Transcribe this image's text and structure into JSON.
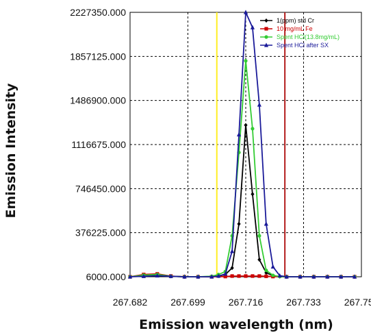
{
  "chart_data": {
    "type": "line",
    "xlabel": "Emission wavelength (nm)",
    "ylabel": "Emission Intensity",
    "xlim": [
      267.682,
      267.75
    ],
    "ylim": [
      6000,
      2227350
    ],
    "x_tick_labels": [
      "267.682",
      "267.699",
      "267.716",
      "267.733",
      "267.750"
    ],
    "y_tick_labels": [
      "6000.000",
      "376225.000",
      "746450.000",
      "1116675.000",
      "1486900.000",
      "1857125.000",
      "2227350.000"
    ],
    "grid": true,
    "legend_position": "top-right",
    "colors": {
      "cr_standard": "#000000",
      "fe_standard": "#cc0000",
      "spent_hcl": "#33cc33",
      "spent_hcl_sx": "#1a1a99",
      "yellow_marker": "#ffee22",
      "red_marker": "#b21a1a"
    },
    "vertical_markers": [
      {
        "x": 267.7075,
        "color": "#ffee22"
      },
      {
        "x": 267.7275,
        "color": "#b21a1a"
      }
    ],
    "series": [
      {
        "name": "1(ppm) std  Cr",
        "color": "#000000",
        "marker": "diamond",
        "x": [
          267.682,
          267.686,
          267.69,
          267.694,
          267.698,
          267.702,
          267.706,
          267.708,
          267.71,
          267.712,
          267.714,
          267.716,
          267.718,
          267.72,
          267.722,
          267.724,
          267.726,
          267.728,
          267.732,
          267.736,
          267.74,
          267.744,
          267.748
        ],
        "values": [
          6000,
          15000,
          20000,
          10000,
          6000,
          6000,
          8000,
          12000,
          25000,
          80000,
          450000,
          1280000,
          700000,
          150000,
          40000,
          15000,
          8000,
          6000,
          6000,
          6000,
          6000,
          6000,
          6000
        ]
      },
      {
        "name": "10 mg/mL  Fe",
        "color": "#cc0000",
        "marker": "square",
        "x": [
          267.682,
          267.686,
          267.69,
          267.694,
          267.698,
          267.702,
          267.706,
          267.71,
          267.712,
          267.714,
          267.716,
          267.718,
          267.72,
          267.722,
          267.724,
          267.728,
          267.732,
          267.736,
          267.74,
          267.744,
          267.748
        ],
        "values": [
          6000,
          25000,
          30000,
          12000,
          6000,
          6000,
          6000,
          8000,
          12000,
          12000,
          12000,
          12000,
          12000,
          10000,
          8000,
          6000,
          6000,
          6000,
          6000,
          6000,
          6000
        ]
      },
      {
        "name": "Spent HCl(13.8mg/mL)",
        "color": "#33cc33",
        "marker": "circle",
        "x": [
          267.682,
          267.686,
          267.69,
          267.694,
          267.698,
          267.702,
          267.706,
          267.708,
          267.71,
          267.712,
          267.714,
          267.716,
          267.718,
          267.72,
          267.722,
          267.724,
          267.726,
          267.728,
          267.732,
          267.736,
          267.74,
          267.744,
          267.748
        ],
        "values": [
          6000,
          20000,
          25000,
          10000,
          6000,
          6000,
          10000,
          25000,
          50000,
          350000,
          1050000,
          1820000,
          1250000,
          350000,
          60000,
          18000,
          8000,
          6000,
          6000,
          6000,
          6000,
          6000,
          6000
        ]
      },
      {
        "name": "Spent HCl after SX",
        "color": "#1a1a99",
        "marker": "triangle",
        "x": [
          267.682,
          267.686,
          267.69,
          267.694,
          267.698,
          267.702,
          267.706,
          267.708,
          267.71,
          267.712,
          267.714,
          267.716,
          267.718,
          267.72,
          267.722,
          267.724,
          267.726,
          267.728,
          267.732,
          267.736,
          267.74,
          267.744,
          267.748
        ],
        "values": [
          6000,
          10000,
          15000,
          10000,
          6000,
          6000,
          6000,
          12000,
          30000,
          220000,
          1200000,
          2227350,
          2100000,
          1450000,
          450000,
          90000,
          15000,
          6000,
          6000,
          6000,
          6000,
          6000,
          6000
        ]
      }
    ]
  }
}
